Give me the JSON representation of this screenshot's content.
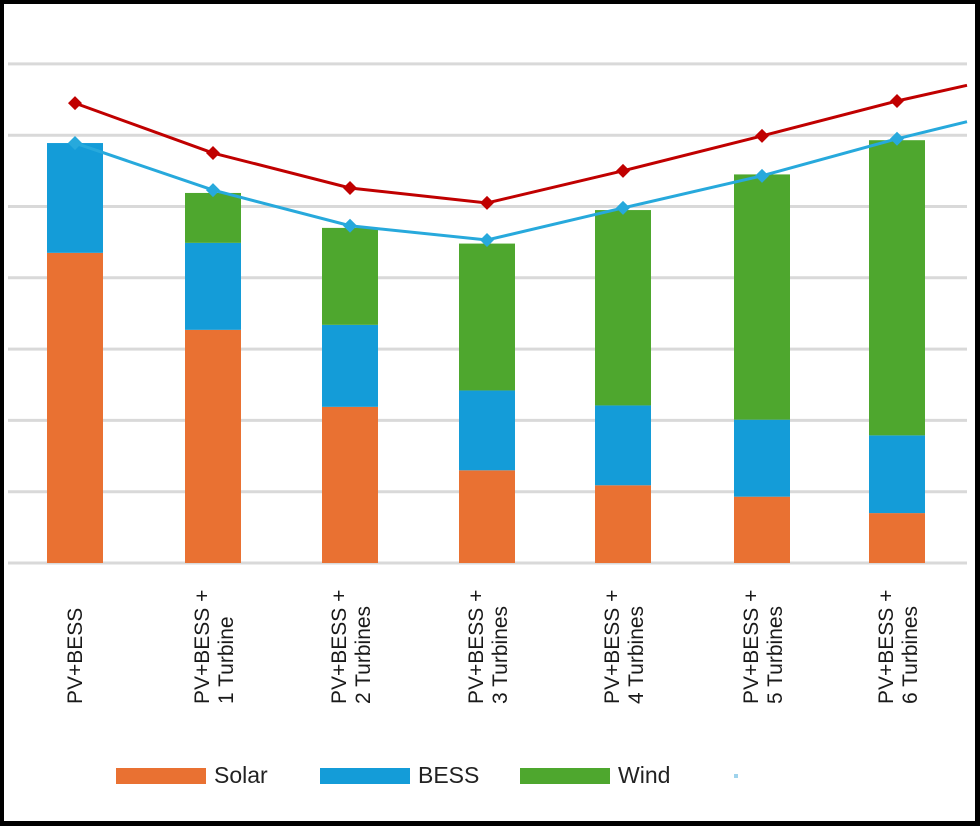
{
  "chart_data": {
    "type": "bar",
    "stacked": true,
    "title": "",
    "xlabel": "",
    "ylabel": "",
    "y_tick_labels_visible": false,
    "y_units": "gridline units (no axis labels shown)",
    "ylim": [
      0,
      7
    ],
    "grid": true,
    "categories": [
      [
        "PV+BESS"
      ],
      [
        "PV+BESS +",
        "1 Turbine"
      ],
      [
        "PV+BESS +",
        "2 Turbines"
      ],
      [
        "PV+BESS +",
        "3 Turbines"
      ],
      [
        "PV+BESS +",
        "4 Turbines"
      ],
      [
        "PV+BESS +",
        "5 Turbines"
      ],
      [
        "PV+BESS +",
        "6 Turbines"
      ]
    ],
    "series": [
      {
        "name": "Solar",
        "kind": "bar",
        "color": "#E97132",
        "values": [
          4.35,
          3.27,
          2.19,
          1.3,
          1.09,
          0.93,
          0.7
        ]
      },
      {
        "name": "BESS",
        "kind": "bar",
        "color": "#149CD8",
        "values": [
          1.54,
          1.22,
          1.15,
          1.12,
          1.12,
          1.08,
          1.09
        ]
      },
      {
        "name": "Wind",
        "kind": "bar",
        "color": "#4EA72E",
        "values": [
          0.0,
          0.7,
          1.36,
          2.06,
          2.74,
          3.44,
          4.14
        ]
      },
      {
        "name": "",
        "kind": "line",
        "marker": "diamond",
        "color": "#C00000",
        "values": [
          6.45,
          5.75,
          5.26,
          5.05,
          5.5,
          5.99,
          6.48
        ],
        "trailing_value": 6.7
      },
      {
        "name": "",
        "kind": "line",
        "marker": "diamond",
        "color": "#27A9DC",
        "values": [
          5.89,
          5.23,
          4.73,
          4.53,
          4.98,
          5.43,
          5.95
        ],
        "trailing_value": 6.19
      }
    ],
    "legend": {
      "position": "bottom",
      "entries": [
        {
          "label": "Solar",
          "color": "#E97132"
        },
        {
          "label": "BESS",
          "color": "#149CD8"
        },
        {
          "label": "Wind",
          "color": "#4EA72E"
        },
        {
          "label": "",
          "color": "#9FD3EC"
        }
      ]
    }
  }
}
